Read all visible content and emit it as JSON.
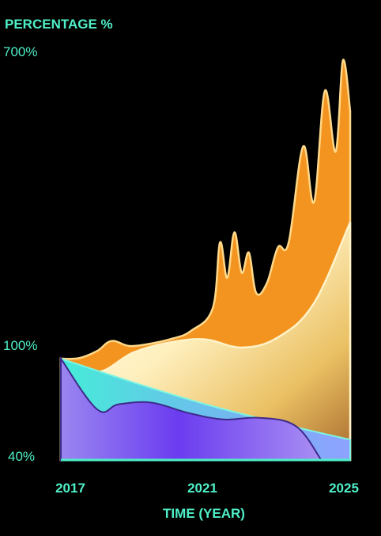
{
  "colors": {
    "accent": "#4ff0c8",
    "background": "#000000",
    "orange": "#f39420",
    "cream": "#fff6d6",
    "gold": "#e8c15a",
    "teal": "#4fe3d6",
    "blue": "#8aa6ff",
    "purple": "#7a4df0"
  },
  "chart_data": {
    "type": "area",
    "title": "",
    "ylabel": "PERCENTAGE %",
    "xlabel": "TIME (YEAR)",
    "xlim": [
      2017,
      2025
    ],
    "y_ticks": [
      "700%",
      "100%",
      "40%"
    ],
    "x_ticks": [
      "2017",
      "2021",
      "2025"
    ],
    "grid": false,
    "legend": "none",
    "series": [
      {
        "x": [
          2017,
          2017.5,
          2018,
          2018.4,
          2018.9,
          2019.5,
          2020.1,
          2020.6,
          2021.2,
          2021.4,
          2021.6,
          2021.8,
          2022.0,
          2022.2,
          2022.4,
          2022.7,
          2023.0,
          2023.3,
          2023.7,
          2024.0,
          2024.3,
          2024.6,
          2024.8,
          2025
        ],
        "values": [
          100,
          101,
          115,
          135,
          125,
          130,
          140,
          155,
          200,
          330,
          260,
          350,
          270,
          310,
          230,
          250,
          320,
          330,
          520,
          410,
          630,
          510,
          690,
          590
        ]
      },
      {
        "x": [
          2017,
          2018,
          2019,
          2020,
          2021,
          2022,
          2023,
          2024,
          2025
        ],
        "values": [
          100,
          92,
          112,
          132,
          138,
          122,
          142,
          210,
          370
        ]
      },
      {
        "x": [
          2017,
          2019,
          2021,
          2023,
          2025
        ],
        "values": [
          100,
          86,
          73,
          62,
          52
        ]
      },
      {
        "x": [
          2017,
          2018,
          2018.6,
          2019.5,
          2020.5,
          2021.5,
          2022.5,
          2023.5,
          2024.2
        ],
        "values": [
          100,
          70,
          73,
          74,
          68,
          64,
          65,
          60,
          40
        ]
      }
    ]
  }
}
